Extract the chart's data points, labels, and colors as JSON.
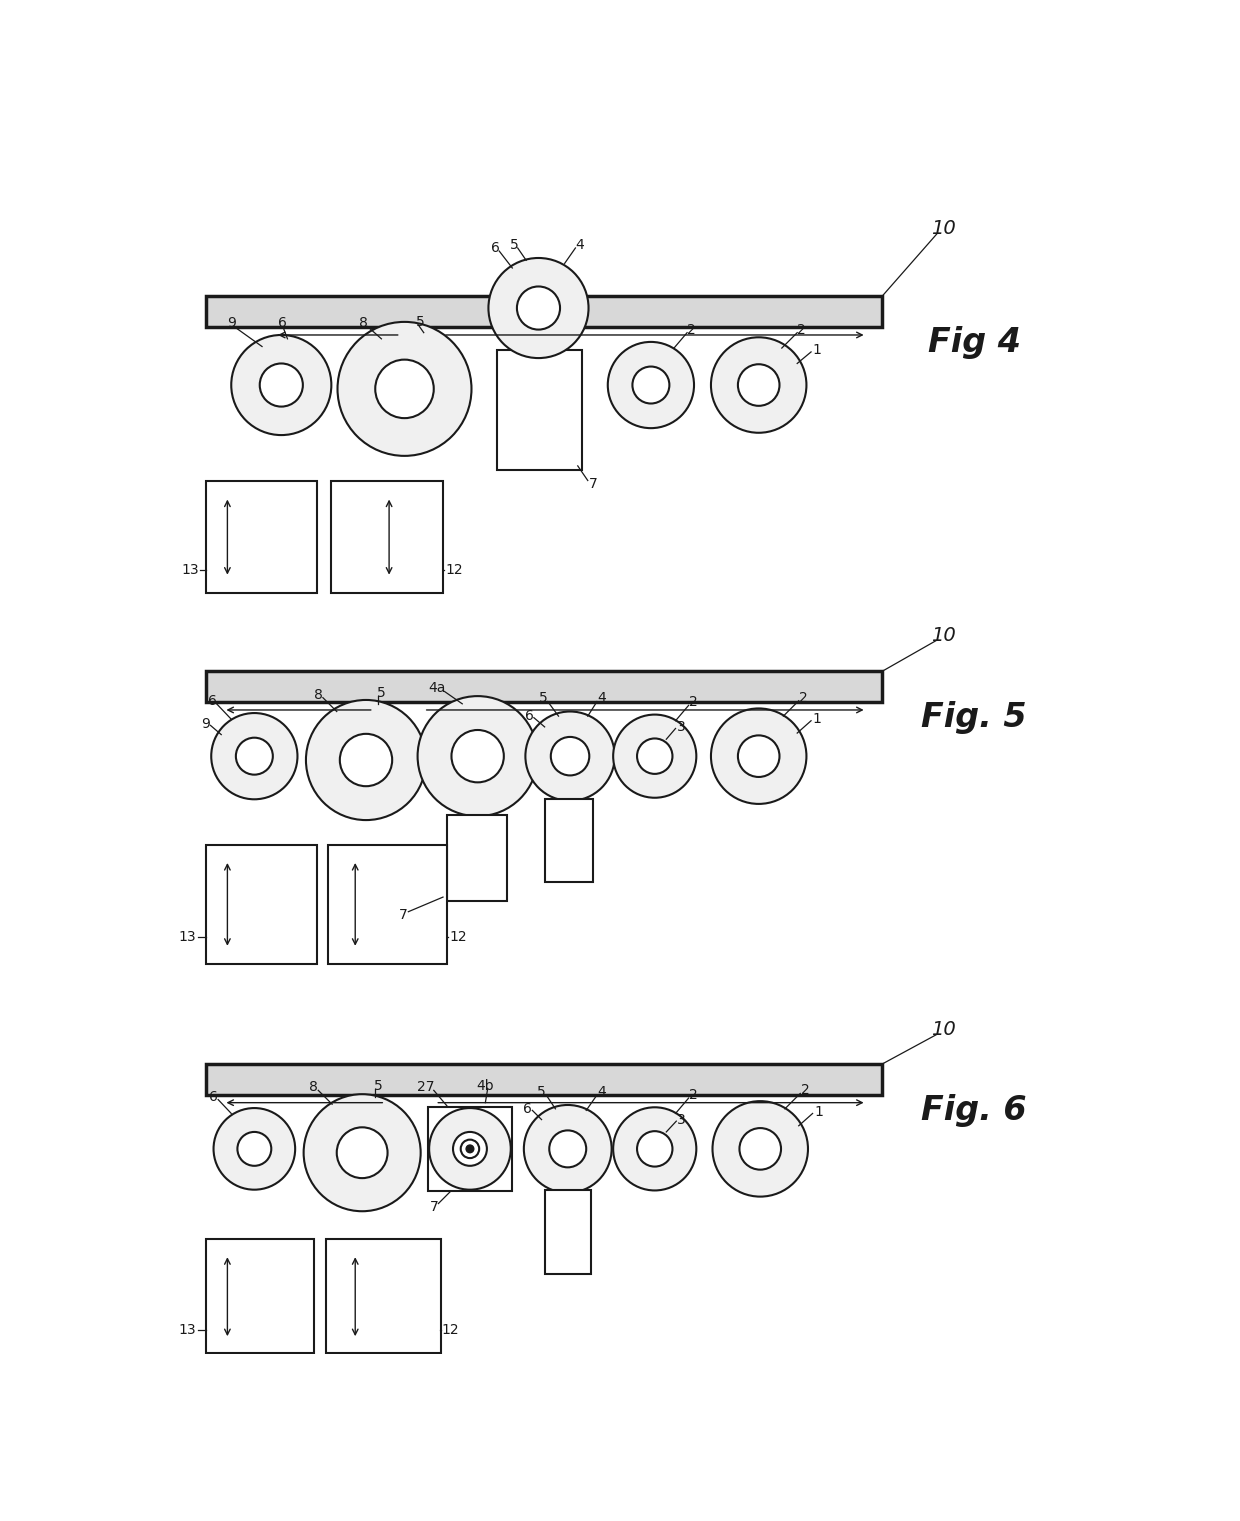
{
  "background_color": "#ffffff",
  "lw_main": 1.5,
  "lw_conveyor": 2.5,
  "color_line": "#1a1a1a",
  "color_fill": "#f0f0f0",
  "color_conveyor": "#d8d8d8",
  "fig4_title": "Fig 4",
  "fig5_title": "Fig. 5",
  "fig6_title": "Fig. 6",
  "label10_text": "10",
  "label13_text": "13",
  "label12_text": "12"
}
